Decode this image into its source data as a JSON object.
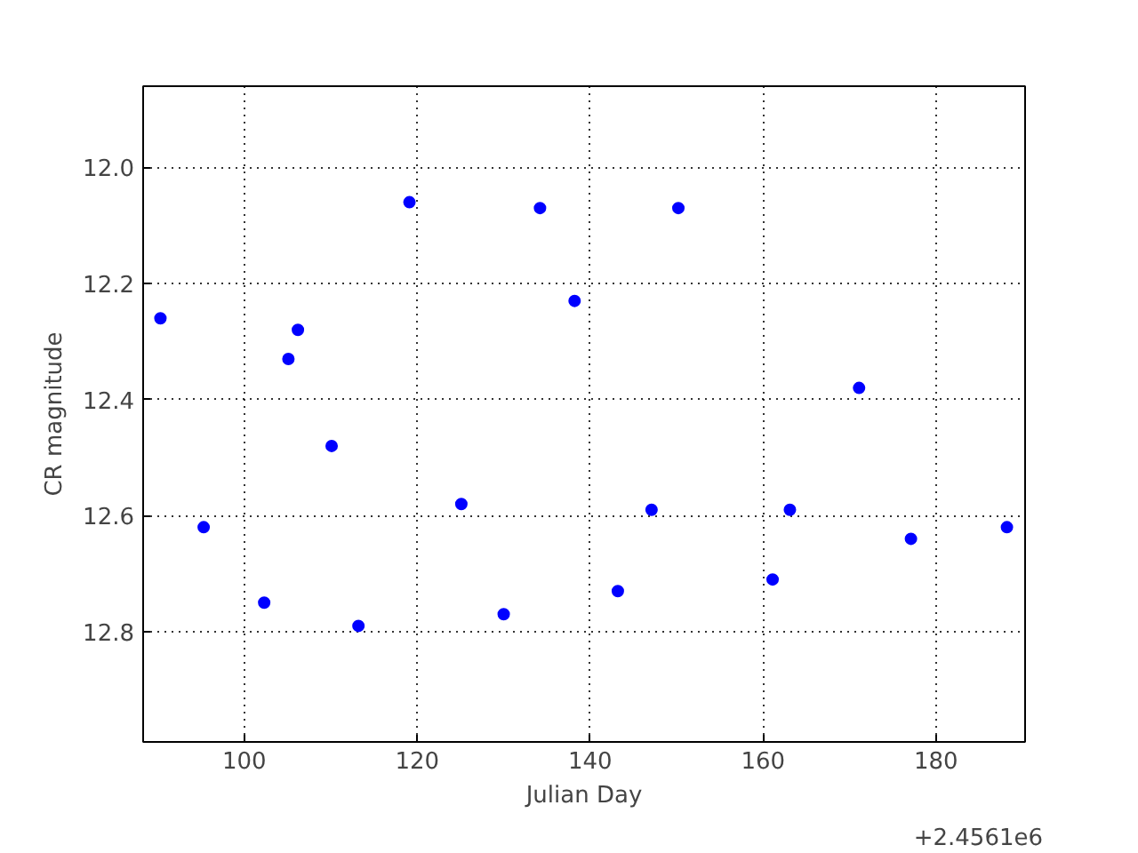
{
  "chart_data": {
    "type": "scatter",
    "xlabel": "Julian Day",
    "ylabel": "CR magnitude",
    "x": [
      90.3,
      95.3,
      102.3,
      105.1,
      106.2,
      110.1,
      113.2,
      119.1,
      125.1,
      130.0,
      134.2,
      138.2,
      143.2,
      147.1,
      150.2,
      161.1,
      163.1,
      171.1,
      177.1,
      188.2
    ],
    "series": [
      {
        "color": "#0000ff",
        "values": [
          12.26,
          12.62,
          12.75,
          12.33,
          12.28,
          12.48,
          12.79,
          12.06,
          12.58,
          12.77,
          12.07,
          12.23,
          12.73,
          12.59,
          12.07,
          12.71,
          12.59,
          12.38,
          12.64,
          12.62
        ]
      }
    ],
    "xlim": [
      88.3,
      190.3
    ],
    "ylim": [
      12.99,
      11.86
    ],
    "xticks": [
      100,
      120,
      140,
      160,
      180
    ],
    "yticks": [
      {
        "value": 12.0,
        "label": "12.0"
      },
      {
        "value": 12.2,
        "label": "12.2"
      },
      {
        "value": 12.4,
        "label": "12.4"
      },
      {
        "value": 12.6,
        "label": "12.6"
      },
      {
        "value": 12.8,
        "label": "12.8"
      }
    ],
    "annotations": [
      "+2.4561e6"
    ],
    "grid": true,
    "marker": "circle"
  }
}
